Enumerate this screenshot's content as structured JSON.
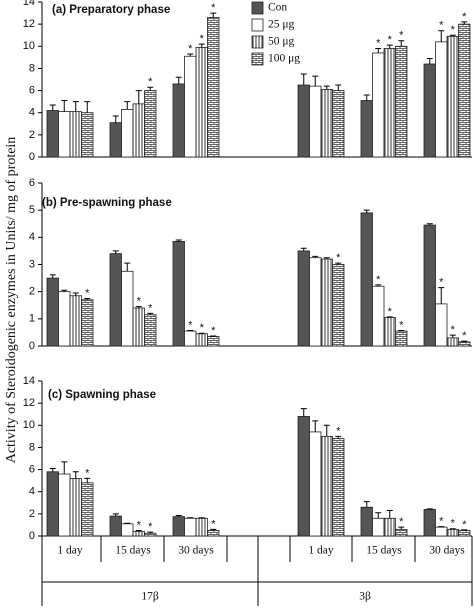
{
  "y_axis_label": "Activity of  Steroidogenic enzymes in Units/ mg of protein",
  "chart_data": [
    {
      "type": "bar",
      "title": "(a) Preparatory phase",
      "ylim": [
        0,
        14
      ],
      "yticks": [
        0,
        2,
        4,
        6,
        8,
        10,
        12,
        14
      ],
      "legend": "top-right",
      "series": [
        {
          "name": "Con",
          "color": "#555555",
          "pattern": "solid",
          "values": [
            4.2,
            3.1,
            6.6,
            6.5,
            5.1,
            8.4
          ],
          "errors": [
            0.5,
            0.6,
            0.6,
            1.0,
            0.5,
            0.5
          ],
          "significance": [
            null,
            null,
            null,
            null,
            null,
            null
          ]
        },
        {
          "name": "25 μg",
          "color": "#ffffff",
          "pattern": "none",
          "values": [
            4.1,
            4.3,
            9.1,
            6.4,
            9.4,
            10.4
          ],
          "errors": [
            1.0,
            0.7,
            0.2,
            0.9,
            0.4,
            1.0
          ],
          "significance": [
            null,
            null,
            "*",
            null,
            "*",
            "*"
          ]
        },
        {
          "name": "50 μg",
          "color": "#333333",
          "pattern": "vertical",
          "values": [
            4.1,
            4.8,
            9.9,
            6.1,
            9.8,
            10.9
          ],
          "errors": [
            0.9,
            1.2,
            0.3,
            0.3,
            0.3,
            0.1
          ],
          "significance": [
            null,
            null,
            "*",
            null,
            "*",
            "*"
          ]
        },
        {
          "name": "100 μg",
          "color": "#333333",
          "pattern": "brick",
          "values": [
            4.0,
            6.0,
            12.6,
            6.0,
            10.0,
            12.0
          ],
          "errors": [
            1.0,
            0.3,
            0.4,
            0.5,
            0.5,
            0.2
          ],
          "significance": [
            null,
            "*",
            "*",
            null,
            "*",
            "*"
          ]
        }
      ]
    },
    {
      "type": "bar",
      "title": "(b) Pre-spawning phase",
      "ylim": [
        0,
        6
      ],
      "yticks": [
        0,
        1,
        2,
        3,
        4,
        5,
        6
      ],
      "series": [
        {
          "color": "#555555",
          "pattern": "solid",
          "values": [
            2.5,
            3.4,
            3.85,
            3.5,
            4.9,
            4.45
          ],
          "errors": [
            0.12,
            0.1,
            0.05,
            0.1,
            0.1,
            0.05
          ],
          "significance": [
            null,
            null,
            null,
            null,
            null,
            null
          ]
        },
        {
          "color": "#ffffff",
          "pattern": "none",
          "values": [
            2.0,
            2.75,
            0.55,
            3.25,
            2.2,
            1.55
          ],
          "errors": [
            0.05,
            0.3,
            0.02,
            0.05,
            0.05,
            0.6
          ],
          "significance": [
            null,
            null,
            "*",
            null,
            "*",
            "*"
          ]
        },
        {
          "color": "#333333",
          "pattern": "vertical",
          "values": [
            1.85,
            1.4,
            0.45,
            3.2,
            1.05,
            0.3
          ],
          "errors": [
            0.1,
            0.05,
            0.02,
            0.05,
            0.02,
            0.1
          ],
          "significance": [
            null,
            "*",
            "*",
            null,
            "*",
            "*"
          ]
        },
        {
          "color": "#333333",
          "pattern": "brick",
          "values": [
            1.7,
            1.15,
            0.35,
            3.0,
            0.55,
            0.15
          ],
          "errors": [
            0.05,
            0.05,
            0.02,
            0.05,
            0.02,
            0.03
          ],
          "significance": [
            "*",
            "*",
            "*",
            "*",
            "*",
            "*"
          ]
        }
      ]
    },
    {
      "type": "bar",
      "title": "(c) Spawning phase",
      "ylim": [
        0,
        14
      ],
      "yticks": [
        0,
        2,
        4,
        6,
        8,
        10,
        12,
        14
      ],
      "categories": [
        "1 day",
        "15 days",
        "30 days",
        "1 day",
        "15 days",
        "30 days"
      ],
      "groups": [
        "17β",
        "3β"
      ],
      "series": [
        {
          "color": "#555555",
          "pattern": "solid",
          "values": [
            5.8,
            1.8,
            1.75,
            10.8,
            2.6,
            2.4
          ],
          "errors": [
            0.3,
            0.2,
            0.1,
            0.7,
            0.5,
            0.05
          ],
          "significance": [
            null,
            null,
            null,
            null,
            null,
            null
          ]
        },
        {
          "color": "#ffffff",
          "pattern": "none",
          "values": [
            5.6,
            1.1,
            1.6,
            9.4,
            1.6,
            0.8
          ],
          "errors": [
            1.1,
            0.05,
            0.05,
            1.0,
            0.5,
            0.05
          ],
          "significance": [
            null,
            null,
            null,
            null,
            null,
            "*"
          ]
        },
        {
          "color": "#333333",
          "pattern": "vertical",
          "values": [
            5.2,
            0.4,
            1.6,
            9.0,
            1.6,
            0.6
          ],
          "errors": [
            0.6,
            0.1,
            0.05,
            1.0,
            0.7,
            0.05
          ],
          "significance": [
            null,
            "*",
            null,
            null,
            null,
            "*"
          ]
        },
        {
          "color": "#333333",
          "pattern": "brick",
          "values": [
            4.8,
            0.25,
            0.5,
            8.8,
            0.6,
            0.5
          ],
          "errors": [
            0.4,
            0.1,
            0.1,
            0.2,
            0.2,
            0.05
          ],
          "significance": [
            "*",
            "*",
            "*",
            "*",
            "*",
            "*"
          ]
        }
      ]
    }
  ]
}
